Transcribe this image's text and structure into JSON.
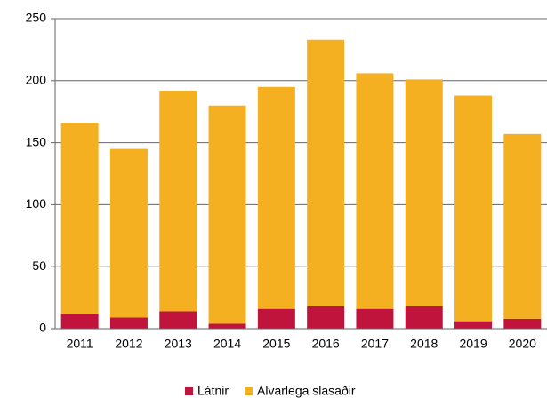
{
  "chart_data": {
    "type": "stacked_bar",
    "categories": [
      "2011",
      "2012",
      "2013",
      "2014",
      "2015",
      "2016",
      "2017",
      "2018",
      "2019",
      "2020"
    ],
    "series": [
      {
        "name": "Látnir",
        "color": "#c0143c",
        "values": [
          12,
          9,
          14,
          4,
          16,
          18,
          16,
          18,
          6,
          8
        ]
      },
      {
        "name": "Alvarlega slasaðir",
        "color": "#f5b021",
        "values": [
          154,
          136,
          178,
          176,
          179,
          215,
          190,
          183,
          182,
          149
        ]
      }
    ],
    "ylim": [
      0,
      250
    ],
    "yticks": [
      0,
      50,
      100,
      150,
      200,
      250
    ],
    "grid": true,
    "legend": "bottom"
  }
}
